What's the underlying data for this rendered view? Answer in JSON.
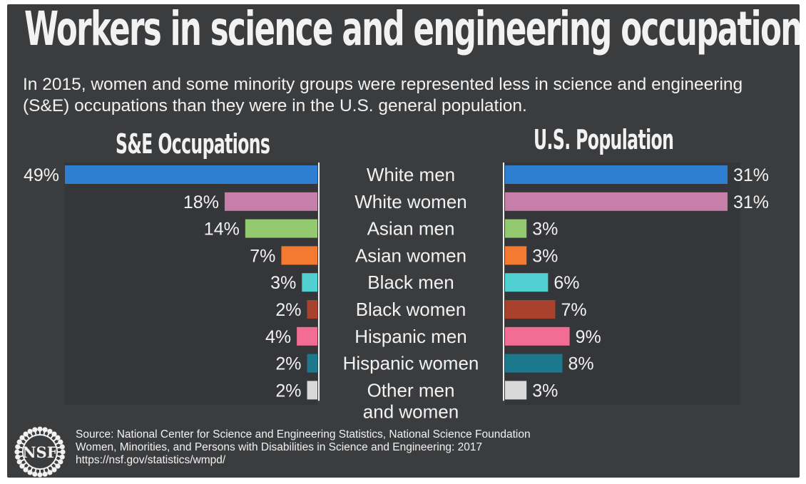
{
  "title": "Workers in science and engineering occupations",
  "subtitle": "In 2015, women and some minority groups were represented less in science and engineering (S&E) occupations than they were in the U.S. general population.",
  "chart_data": {
    "type": "bar",
    "categories": [
      "White men",
      "White women",
      "Asian men",
      "Asian women",
      "Black men",
      "Black women",
      "Hispanic men",
      "Hispanic women",
      "Other men and women"
    ],
    "colors": [
      "#2e7fd1",
      "#c57fa8",
      "#93c96f",
      "#f47a32",
      "#50d0d0",
      "#a9422d",
      "#f26c93",
      "#1c788c",
      "#d9d9d9"
    ],
    "series": [
      {
        "name": "S&E Occupations",
        "values": [
          49,
          18,
          14,
          7,
          3,
          2,
          4,
          2,
          2
        ],
        "labels": [
          "49%",
          "18%",
          "14%",
          "7%",
          "3%",
          "2%",
          "4%",
          "2%",
          "2%"
        ]
      },
      {
        "name": "U.S. Population",
        "values": [
          31,
          31,
          3,
          3,
          6,
          7,
          9,
          8,
          3
        ],
        "labels": [
          "31%",
          "31%",
          "3%",
          "3%",
          "6%",
          "7%",
          "9%",
          "8%",
          "3%"
        ]
      }
    ]
  },
  "source": {
    "line1": "Source: National Center for Science and Engineering Statistics, National Science Foundation",
    "line2": "Women, Minorities, and Persons with Disabilities in Science and Engineering: 2017",
    "line3": "https://nsf.gov/statistics/wmpd/"
  },
  "logo": {
    "text": "NSF",
    "icon": "nsf-logo-icon"
  }
}
